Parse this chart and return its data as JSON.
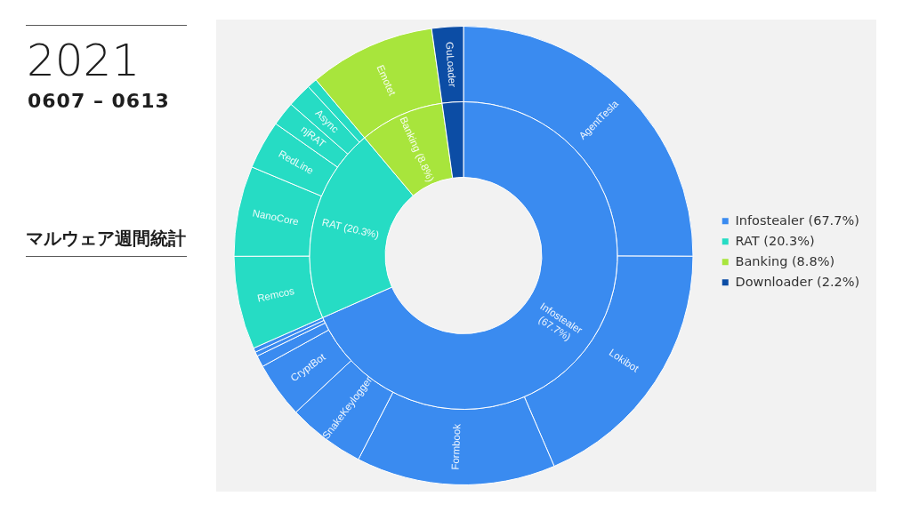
{
  "chart_data": [
    {
      "type": "donut",
      "title": "2021",
      "subtitle": "0607 – 0613",
      "annotations": [
        "マルウェア週間統計"
      ],
      "legend": "right",
      "categories": [
        "Infostealer (67.7%)",
        "RAT (20.3%)",
        "Banking (8.8%)",
        "Downloader (2.2%)"
      ],
      "values": [
        67.7,
        20.3,
        8.8,
        2.2
      ],
      "colors": [
        "#3a8bf0",
        "#26dcc4",
        "#a8e53c",
        "#0c4da5"
      ],
      "value_labels": [
        "Infostealer (67.7%)",
        "RAT (20.3%)",
        "Banking (8.8%)",
        null
      ]
    },
    {
      "type": "donut",
      "categories": [
        "AgentTesla",
        "Lokibot",
        "Formbook",
        "SnakeKeylogger",
        "CryptBot",
        null,
        null,
        null,
        "Remcos",
        "NanoCore",
        "RedLine",
        "njRAT",
        "Async",
        null,
        "Emotet",
        "GuLoader"
      ],
      "values": [
        24.8,
        18.3,
        13.9,
        5.4,
        3.9,
        0.8,
        0.3,
        0.3,
        6.5,
        6.3,
        3.4,
        1.7,
        1.7,
        0.7,
        8.8,
        2.2
      ],
      "colors": [
        "#3a8bf0",
        "#3a8bf0",
        "#3a8bf0",
        "#3a8bf0",
        "#3a8bf0",
        "#3a8bf0",
        "#3a8bf0",
        "#3a8bf0",
        "#26dcc4",
        "#26dcc4",
        "#26dcc4",
        "#26dcc4",
        "#26dcc4",
        "#26dcc4",
        "#a8e53c",
        "#0c4da5"
      ]
    }
  ]
}
